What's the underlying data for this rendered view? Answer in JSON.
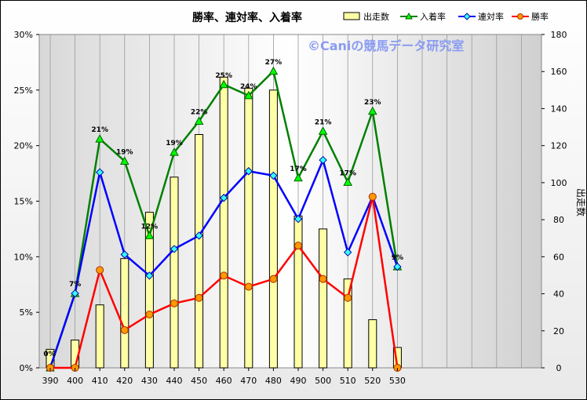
{
  "chart_data": {
    "type": "bar+line",
    "title": "勝率、連対率、入着率",
    "watermark": "©Caniの競馬データ研究室",
    "categories": [
      "390",
      "400",
      "410",
      "420",
      "430",
      "440",
      "450",
      "460",
      "470",
      "480",
      "490",
      "500",
      "510",
      "520",
      "530"
    ],
    "bar_series": {
      "name": "出走数",
      "values": [
        10,
        15,
        34,
        59,
        84,
        103,
        126,
        157,
        151,
        150,
        82,
        75,
        48,
        26,
        11
      ],
      "color": "#ffffa6"
    },
    "line_series": [
      {
        "name": "入着率",
        "values": [
          0,
          6.7,
          20.6,
          18.6,
          11.9,
          19.4,
          22.2,
          25.5,
          24.5,
          26.7,
          17.1,
          21.3,
          16.7,
          23.1,
          9.1
        ],
        "color": "#008000",
        "marker": "triangle"
      },
      {
        "name": "連対率",
        "values": [
          0,
          6.7,
          17.6,
          10.2,
          8.3,
          10.7,
          11.9,
          15.3,
          17.7,
          17.3,
          13.4,
          18.7,
          10.4,
          15.4,
          9.1
        ],
        "color": "#0000ff",
        "marker": "diamond"
      },
      {
        "name": "勝率",
        "values": [
          0,
          0,
          8.8,
          3.4,
          4.8,
          5.8,
          6.3,
          8.3,
          7.3,
          8.0,
          11.0,
          8.0,
          6.3,
          15.4,
          0
        ],
        "color": "#ff0000",
        "marker": "circle"
      }
    ],
    "data_labels": [
      "0%",
      "7%",
      "21%",
      "19%",
      "12%",
      "19%",
      "22%",
      "25%",
      "24%",
      "27%",
      "17%",
      "21%",
      "17%",
      "23%",
      "9%"
    ],
    "y_left": {
      "min": 0,
      "max": 30,
      "step": 5,
      "format": "percent",
      "ticks": [
        "0%",
        "5%",
        "10%",
        "15%",
        "20%",
        "25%",
        "30%"
      ]
    },
    "y_right": {
      "min": 0,
      "max": 180,
      "step": 20,
      "label": "出走数",
      "ticks": [
        "0",
        "20",
        "40",
        "60",
        "80",
        "100",
        "120",
        "140",
        "160",
        "180"
      ]
    },
    "legend_position": "top-right",
    "grid": "vertical"
  }
}
